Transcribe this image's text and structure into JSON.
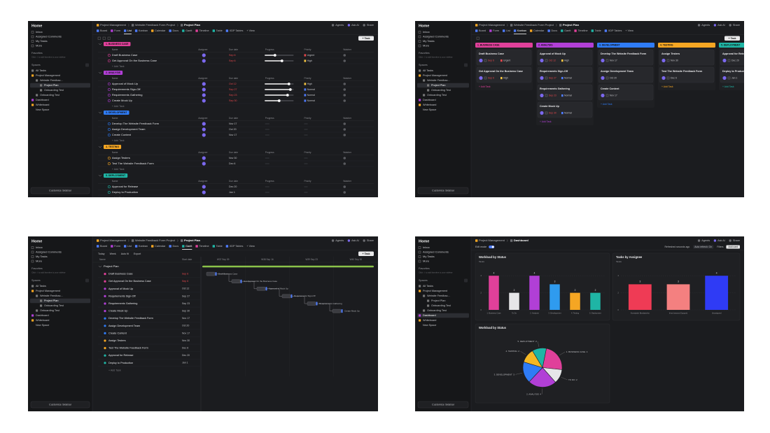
{
  "sidebar": {
    "title": "Home",
    "items": [
      "Inbox",
      "Assigned Comments",
      "My Tasks",
      "More"
    ],
    "favorites": "Favorites",
    "favorites_hint": "Click ☆ to add favorites to your sidebar",
    "spaces": "Spaces",
    "tree": [
      "All Tasks",
      "Project Management",
      "Website Feedbac...",
      "Project Plan",
      "Onboarding Test",
      "Onboarding Test",
      "Dashboard",
      "Whiteboard",
      "New Space"
    ],
    "customize": "Customize Sidebar"
  },
  "topbar": {
    "actions": [
      "Agents",
      "Ask AI",
      "Share"
    ]
  },
  "views": [
    "Board",
    "Form",
    "List",
    "Kanban",
    "Calendar",
    "Docs",
    "Gantt",
    "Timeline",
    "Table",
    "XDP Tables",
    "+ View"
  ],
  "list": {
    "breadcrumb": [
      "Project Management",
      "Website Feedback Form Project",
      "Project Plan"
    ],
    "task_button": "+ Task",
    "columns": [
      "Name",
      "Assignee",
      "Due date",
      "Progress",
      "Priority",
      "Watcher"
    ],
    "add_task": "+ Add Task",
    "groups": [
      {
        "name": "1. BUSINESS CASE",
        "color": "#e0409a",
        "tasks": [
          {
            "name": "Draft Business Case",
            "due": "Sep 6",
            "progress": 35,
            "priority": "Urgent"
          },
          {
            "name": "Get Approval On the Business Case",
            "due": "Sep 6",
            "progress": 60,
            "priority": "High"
          }
        ]
      },
      {
        "name": "2. ANALYSIS",
        "color": "#b13fd6",
        "tasks": [
          {
            "name": "Approval of Mock Up",
            "due": "Oct 12",
            "progress": 85,
            "priority": "High"
          },
          {
            "name": "Requirements Sign-Off",
            "due": "Sep 27",
            "progress": 90,
            "priority": "Normal"
          },
          {
            "name": "Requirements Gathering",
            "due": "Sep 23",
            "progress": 80,
            "priority": "Normal"
          },
          {
            "name": "Create Mock Up",
            "due": "Sep 30",
            "progress": 50,
            "priority": "Normal"
          }
        ]
      },
      {
        "name": "3. DEVELOPMENT",
        "color": "#2f7cf6",
        "tasks": [
          {
            "name": "Develop The Website Feedback Form",
            "due": "Nov 17"
          },
          {
            "name": "Assign Development Team",
            "due": "Oct 20"
          },
          {
            "name": "Create Content",
            "due": "Nov 17"
          }
        ]
      },
      {
        "name": "4. TESTING",
        "color": "#f5a623",
        "tasks": [
          {
            "name": "Assign Testers",
            "due": "Nov 30"
          },
          {
            "name": "Test The Website Feedback Form",
            "due": "Dec 6"
          }
        ]
      },
      {
        "name": "5. DEPLOYMENT",
        "color": "#1fb5a5",
        "tasks": [
          {
            "name": "Approval for Release",
            "due": "Dec 20"
          },
          {
            "name": "Deploy to Production",
            "due": "Jan 1"
          }
        ]
      }
    ]
  },
  "gantt": {
    "toolbar": [
      "Today",
      "Week",
      "Auto fit",
      "Export"
    ],
    "columns": [
      "Name",
      "Start date"
    ],
    "weeks": [
      "W37 Sep 09",
      "W38 Sep 16",
      "W39 Sep 23",
      "W40 Sep 30"
    ]
  },
  "dashboard": {
    "breadcrumb": [
      "Project Management",
      "Dashboard"
    ],
    "edit_mode": "Edit mode",
    "toolbar": [
      "Refreshed seconds ago",
      "Auto refresh: On",
      "Filters",
      "Add card"
    ],
    "charts": [
      {
        "type": "bar",
        "title": "Workload by Status",
        "y_label": "Tasks",
        "categories": [
          "1. Business Case",
          "To Do",
          "2. Analysis",
          "3. Development",
          "4. Testing",
          "5. Deployment"
        ],
        "colors": [
          "#e0409a",
          "#e6e6e8",
          "#b13fd6",
          "#2f9bef",
          "#f5a623",
          "#1fb5a5"
        ],
        "values": [
          4,
          2,
          4,
          3,
          2,
          2
        ],
        "ylim": [
          0,
          5
        ],
        "yticks": [
          0,
          2,
          4
        ]
      },
      {
        "type": "bar",
        "title": "Tasks by Assignee",
        "y_label": "Tasks",
        "categories": [
          "Konstantin Bondarenko",
          "Irina Ivanova (Support)",
          "Unassigned"
        ],
        "colors": [
          "#ef3b55",
          "#f48080",
          "#2f3bf5"
        ],
        "values": [
          3,
          3,
          4
        ],
        "ylim": [
          0,
          5
        ],
        "yticks": [
          0,
          2,
          4
        ]
      },
      {
        "type": "pie",
        "title": "Workload by Status",
        "categories": [
          "1. BUSINESS CASE",
          "TO DO",
          "2. ANALYSIS",
          "3. DEVELOPMENT",
          "4. TESTING",
          "5. DEPLOYMENT"
        ],
        "colors": [
          "#e0409a",
          "#e6e6e8",
          "#b13fd6",
          "#2f7cf6",
          "#f5b823",
          "#1fb5a5"
        ],
        "values": [
          4,
          2,
          4,
          3,
          2,
          2
        ]
      }
    ]
  }
}
